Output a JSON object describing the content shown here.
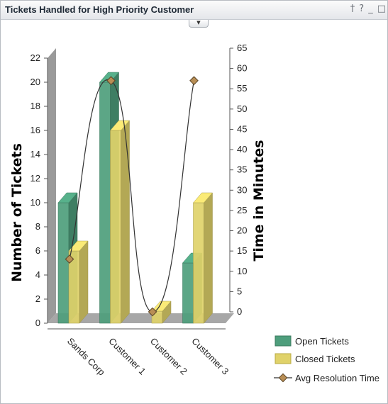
{
  "window": {
    "title": "Tickets Handled for High Priority Customer",
    "icons": [
      "pin-icon",
      "help-icon",
      "minimize-icon",
      "maximize-icon"
    ]
  },
  "chart_data": {
    "type": "bar",
    "categories": [
      "Sands Corp",
      "Customer 1",
      "Customer 2",
      "Customer 3"
    ],
    "series": [
      {
        "name": "Open Tickets",
        "type": "bar",
        "axis": "left",
        "values": [
          10,
          20,
          0,
          5
        ],
        "color": "#4e9e7c"
      },
      {
        "name": "Closed Tickets",
        "type": "bar",
        "axis": "left",
        "values": [
          6,
          16,
          1,
          10
        ],
        "color": "#e0d26a"
      },
      {
        "name": "Avg Resolution Time",
        "type": "line",
        "axis": "right",
        "values": [
          13,
          57,
          0,
          57
        ],
        "color": "#333333",
        "marker": "diamond",
        "marker_color": "#b88e55"
      }
    ],
    "ylabel": "Number of Tickets",
    "y2label": "Time in Minutes",
    "ylim": [
      0,
      22
    ],
    "yticks": [
      "0",
      "2",
      "4",
      "6",
      "8",
      "10",
      "12",
      "14",
      "16",
      "18",
      "20",
      "22"
    ],
    "y2lim": [
      0,
      65
    ],
    "y2ticks": [
      "0",
      "5",
      "10",
      "15",
      "20",
      "25",
      "30",
      "35",
      "40",
      "45",
      "50",
      "55",
      "60",
      "65"
    ],
    "three_d": true,
    "grid": false,
    "legend_position": "bottom-right"
  }
}
